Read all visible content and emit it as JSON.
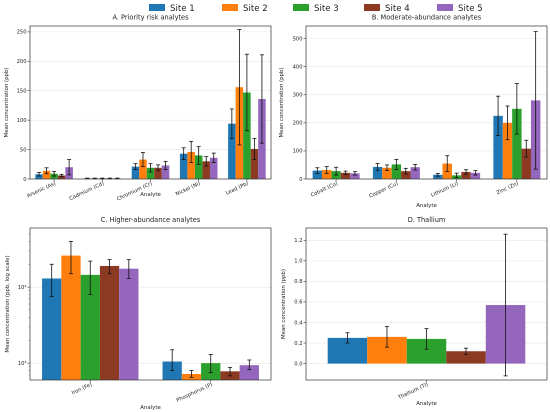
{
  "chart_data": {
    "type": "bar",
    "legend": {
      "placement": "top-center",
      "entries": [
        {
          "name": "Site 1",
          "color": "#1f77b4"
        },
        {
          "name": "Site 2",
          "color": "#ff7f0e"
        },
        {
          "name": "Site 3",
          "color": "#2ca02c"
        },
        {
          "name": "Site 4",
          "color": "#8c3a22"
        },
        {
          "name": "Site 5",
          "color": "#9467bd"
        }
      ]
    },
    "panels": [
      {
        "id": "A",
        "title": "A. Priority risk analytes",
        "xlabel": "Analyte",
        "ylabel": "Mean concentration (ppb)",
        "yscale": "linear",
        "ylim": [
          0,
          260
        ],
        "yticks": [
          "0",
          "50",
          "100",
          "150",
          "200",
          "250"
        ],
        "grid": true,
        "categories": [
          "Arsenic (As)",
          "Cadmium (Cd)",
          "Chromium (Cr)",
          "Nickel (Ni)",
          "Lead (Pb)"
        ],
        "series": [
          {
            "name": "Site 1",
            "values": [
              8,
              1,
              21,
              43,
              94
            ],
            "errors": [
              3,
              0.5,
              5,
              10,
              25
            ]
          },
          {
            "name": "Site 2",
            "values": [
              14,
              1,
              33,
              46,
              156
            ],
            "errors": [
              5,
              0.5,
              12,
              18,
              98
            ]
          },
          {
            "name": "Site 3",
            "values": [
              9,
              1,
              19,
              40,
              147
            ],
            "errors": [
              4,
              0.5,
              7,
              15,
              65
            ]
          },
          {
            "name": "Site 4",
            "values": [
              6,
              1,
              19,
              30,
              51
            ],
            "errors": [
              2,
              0.5,
              5,
              8,
              18
            ]
          },
          {
            "name": "Site 5",
            "values": [
              20,
              1,
              23,
              36,
              136
            ],
            "errors": [
              13,
              0.5,
              7,
              8,
              75
            ]
          }
        ]
      },
      {
        "id": "B",
        "title": "B. Moderate-abundance analytes",
        "xlabel": "Analyte",
        "ylabel": "Mean concentration (ppb)",
        "yscale": "linear",
        "ylim": [
          0,
          545
        ],
        "yticks": [
          "0",
          "100",
          "200",
          "300",
          "400",
          "500"
        ],
        "grid": true,
        "categories": [
          "Cobalt (Co)",
          "Copper (Cu)",
          "Lithium (Li)",
          "Zinc (Zn)"
        ],
        "series": [
          {
            "name": "Site 1",
            "values": [
              30,
              43,
              15,
              225
            ],
            "errors": [
              10,
              12,
              5,
              70
            ]
          },
          {
            "name": "Site 2",
            "values": [
              32,
              40,
              55,
              200
            ],
            "errors": [
              12,
              10,
              28,
              60
            ]
          },
          {
            "name": "Site 3",
            "values": [
              28,
              52,
              13,
              250
            ],
            "errors": [
              14,
              18,
              8,
              90
            ]
          },
          {
            "name": "Site 4",
            "values": [
              22,
              28,
              25,
              108
            ],
            "errors": [
              6,
              10,
              8,
              30
            ]
          },
          {
            "name": "Site 5",
            "values": [
              20,
              42,
              22,
              280
            ],
            "errors": [
              6,
              10,
              8,
              245
            ]
          }
        ]
      },
      {
        "id": "C",
        "title": "C. Higher-abundance analytes",
        "xlabel": "Analyte",
        "ylabel": "Mean concentration (ppb, log scale)",
        "yscale": "log",
        "ylim": [
          600,
          60000
        ],
        "yticks": [
          "10³",
          "10⁴"
        ],
        "grid": true,
        "categories": [
          "Iron (Fe)",
          "Phosphorus (P)"
        ],
        "series": [
          {
            "name": "Site 1",
            "values": [
              13000,
              1050
            ],
            "lo": [
              7500,
              800
            ],
            "hi": [
              20000,
              1500
            ]
          },
          {
            "name": "Site 2",
            "values": [
              26000,
              720
            ],
            "lo": [
              15000,
              650
            ],
            "hi": [
              40000,
              800
            ]
          },
          {
            "name": "Site 3",
            "values": [
              14500,
              1000
            ],
            "lo": [
              8000,
              750
            ],
            "hi": [
              22000,
              1300
            ]
          },
          {
            "name": "Site 4",
            "values": [
              19000,
              780
            ],
            "lo": [
              15000,
              680
            ],
            "hi": [
              23000,
              880
            ]
          },
          {
            "name": "Site 5",
            "values": [
              17500,
              940
            ],
            "lo": [
              13000,
              820
            ],
            "hi": [
              23000,
              1100
            ]
          }
        ]
      },
      {
        "id": "D",
        "title": "D. Thallium",
        "xlabel": "Analyte",
        "ylabel": "Mean concentration (ppb)",
        "yscale": "linear",
        "ylim": [
          -0.16,
          1.32
        ],
        "yticks": [
          "0.0",
          "0.2",
          "0.4",
          "0.6",
          "0.8",
          "1.0",
          "1.2"
        ],
        "grid": true,
        "categories": [
          "Thallium (Tl)"
        ],
        "series": [
          {
            "name": "Site 1",
            "values": [
              0.25
            ],
            "errors": [
              0.05
            ]
          },
          {
            "name": "Site 2",
            "values": [
              0.26
            ],
            "errors": [
              0.1
            ]
          },
          {
            "name": "Site 3",
            "values": [
              0.24
            ],
            "errors": [
              0.1
            ]
          },
          {
            "name": "Site 4",
            "values": [
              0.12
            ],
            "errors": [
              0.03
            ]
          },
          {
            "name": "Site 5",
            "values": [
              0.57
            ],
            "lo": [
              -0.12
            ],
            "hi": [
              1.26
            ]
          }
        ]
      }
    ]
  }
}
